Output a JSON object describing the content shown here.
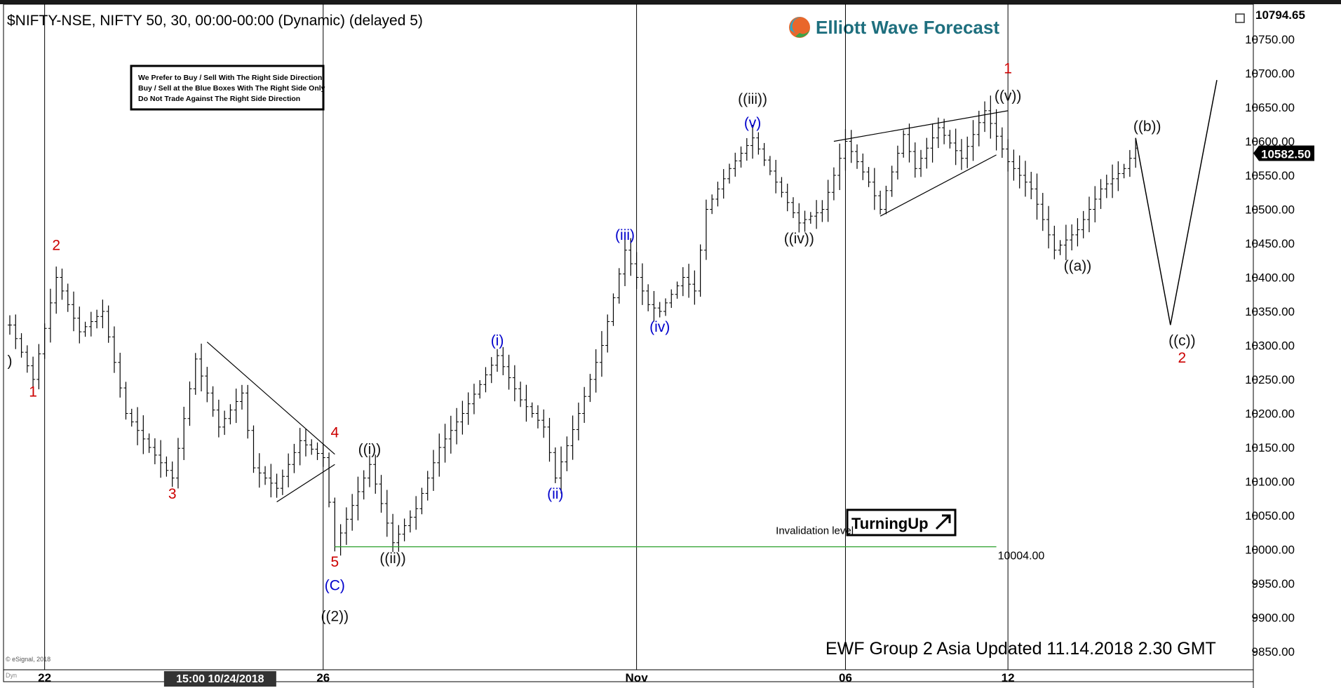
{
  "header": {
    "symbol_line": "$NIFTY-NSE, NIFTY 50, 30, 00:00-00:00 (Dynamic) (delayed 5)",
    "brand": "Elliott Wave Forecast",
    "footer_note": "EWF Group 2 Asia Updated 11.14.2018 2.30 GMT",
    "copyright": "© eSignal, 2018",
    "dyn_tag": "Dyn"
  },
  "notice_box": {
    "lines": [
      "We Prefer to Buy / Sell With The Right Side Direction",
      "Buy / Sell at the Blue Boxes With The Right Side Only",
      "Do Not Trade Against The Right Side Direction"
    ]
  },
  "badge": {
    "label": "TurningUp"
  },
  "colors": {
    "price_bar": "#000000",
    "red_label": "#cc0000",
    "blue_label": "#0000cc",
    "black_label": "#111111",
    "invalidation_line": "#2ca02c",
    "current_price_bg": "#000000"
  },
  "chart_data": {
    "type": "line",
    "title": "",
    "xlabel": "",
    "ylabel": "",
    "ylim": [
      9820,
      10800
    ],
    "yticks": [
      "10750.00",
      "10700.00",
      "10650.00",
      "10600.00",
      "10550.00",
      "10500.00",
      "10450.00",
      "10400.00",
      "10350.00",
      "10300.00",
      "10250.00",
      "10200.00",
      "10150.00",
      "10100.00",
      "10050.00",
      "10000.00",
      "9950.00",
      "9900.00",
      "9850.00"
    ],
    "ytick_values": [
      10750,
      10700,
      10650,
      10600,
      10550,
      10500,
      10450,
      10400,
      10350,
      10300,
      10250,
      10200,
      10150,
      10100,
      10050,
      10000,
      9950,
      9900,
      9850
    ],
    "top_price_label": "10794.65",
    "top_price_value": 10794.65,
    "current_price_label": "10582.50",
    "current_price_value": 10582.5,
    "xticks": [
      "22",
      "26",
      "Nov",
      "06",
      "12"
    ],
    "xtick_index": [
      3,
      27,
      54,
      72,
      86
    ],
    "crosshair_date_label": "15:00 10/24/2018",
    "crosshair_index": 18,
    "bar_count": 105,
    "price_path": [
      {
        "i": 0,
        "v": 10330
      },
      {
        "i": 2,
        "v": 10250
      },
      {
        "i": 4,
        "v": 10400
      },
      {
        "i": 6,
        "v": 10320
      },
      {
        "i": 8,
        "v": 10350
      },
      {
        "i": 10,
        "v": 10200
      },
      {
        "i": 12,
        "v": 10150
      },
      {
        "i": 14,
        "v": 10105
      },
      {
        "i": 16,
        "v": 10280
      },
      {
        "i": 18,
        "v": 10180
      },
      {
        "i": 20,
        "v": 10230
      },
      {
        "i": 21,
        "v": 10120
      },
      {
        "i": 23,
        "v": 10090
      },
      {
        "i": 25,
        "v": 10160
      },
      {
        "i": 27,
        "v": 10135
      },
      {
        "i": 28,
        "v": 10004
      },
      {
        "i": 30,
        "v": 10085
      },
      {
        "i": 31,
        "v": 10125
      },
      {
        "i": 33,
        "v": 10010
      },
      {
        "i": 35,
        "v": 10060
      },
      {
        "i": 37,
        "v": 10150
      },
      {
        "i": 39,
        "v": 10200
      },
      {
        "i": 42,
        "v": 10285
      },
      {
        "i": 44,
        "v": 10220
      },
      {
        "i": 46,
        "v": 10180
      },
      {
        "i": 47,
        "v": 10105
      },
      {
        "i": 49,
        "v": 10200
      },
      {
        "i": 51,
        "v": 10300
      },
      {
        "i": 53,
        "v": 10440
      },
      {
        "i": 55,
        "v": 10360
      },
      {
        "i": 56,
        "v": 10350
      },
      {
        "i": 58,
        "v": 10400
      },
      {
        "i": 59,
        "v": 10380
      },
      {
        "i": 60,
        "v": 10500
      },
      {
        "i": 62,
        "v": 10560
      },
      {
        "i": 64,
        "v": 10605
      },
      {
        "i": 66,
        "v": 10540
      },
      {
        "i": 68,
        "v": 10480
      },
      {
        "i": 70,
        "v": 10500
      },
      {
        "i": 72,
        "v": 10600
      },
      {
        "i": 74,
        "v": 10540
      },
      {
        "i": 75,
        "v": 10500
      },
      {
        "i": 77,
        "v": 10610
      },
      {
        "i": 78,
        "v": 10560
      },
      {
        "i": 80,
        "v": 10620
      },
      {
        "i": 82,
        "v": 10575
      },
      {
        "i": 84,
        "v": 10645
      },
      {
        "i": 86,
        "v": 10570
      },
      {
        "i": 88,
        "v": 10530
      },
      {
        "i": 90,
        "v": 10440
      },
      {
        "i": 92,
        "v": 10470
      },
      {
        "i": 94,
        "v": 10530
      },
      {
        "i": 96,
        "v": 10560
      },
      {
        "i": 97,
        "v": 10590
      }
    ],
    "projection_path": [
      {
        "i": 97,
        "v": 10605
      },
      {
        "i": 100,
        "v": 10330
      },
      {
        "i": 104,
        "v": 10690
      }
    ],
    "invalidation": {
      "label": "Invalidation level",
      "value_label": "10004.00",
      "value": 10004,
      "i_start": 28,
      "i_end": 85
    },
    "trend_lines": [
      {
        "i1": 17,
        "v1": 10305,
        "i2": 28,
        "v2": 10140
      },
      {
        "i1": 23,
        "v1": 10070,
        "i2": 28,
        "v2": 10125
      },
      {
        "i1": 71,
        "v1": 10600,
        "i2": 86,
        "v2": 10645
      },
      {
        "i1": 75,
        "v1": 10490,
        "i2": 85,
        "v2": 10580
      }
    ],
    "wave_labels": [
      {
        "text": ")",
        "i": 0,
        "v": 10270,
        "color": "black"
      },
      {
        "text": "1",
        "i": 2,
        "v": 10225,
        "color": "red"
      },
      {
        "text": "2",
        "i": 4,
        "v": 10440,
        "color": "red"
      },
      {
        "text": "3",
        "i": 14,
        "v": 10075,
        "color": "red"
      },
      {
        "text": "4",
        "i": 28,
        "v": 10165,
        "color": "red"
      },
      {
        "text": "5",
        "i": 28,
        "v": 9975,
        "color": "red"
      },
      {
        "text": "(C)",
        "i": 28,
        "v": 9940,
        "color": "blue"
      },
      {
        "text": "((2))",
        "i": 28,
        "v": 9895,
        "color": "black"
      },
      {
        "text": "((i))",
        "i": 31,
        "v": 10140,
        "color": "black"
      },
      {
        "text": "((ii))",
        "i": 33,
        "v": 9980,
        "color": "black"
      },
      {
        "text": "(i)",
        "i": 42,
        "v": 10300,
        "color": "blue"
      },
      {
        "text": "(ii)",
        "i": 47,
        "v": 10075,
        "color": "blue"
      },
      {
        "text": "(iii)",
        "i": 53,
        "v": 10455,
        "color": "blue"
      },
      {
        "text": "(iv)",
        "i": 56,
        "v": 10320,
        "color": "blue"
      },
      {
        "text": "(v)",
        "i": 64,
        "v": 10620,
        "color": "blue"
      },
      {
        "text": "((iii))",
        "i": 64,
        "v": 10655,
        "color": "black"
      },
      {
        "text": "((iv))",
        "i": 68,
        "v": 10450,
        "color": "black"
      },
      {
        "text": "1",
        "i": 86,
        "v": 10700,
        "color": "red"
      },
      {
        "text": "((v))",
        "i": 86,
        "v": 10660,
        "color": "black"
      },
      {
        "text": "((a))",
        "i": 92,
        "v": 10410,
        "color": "black"
      },
      {
        "text": "((b))",
        "i": 98,
        "v": 10615,
        "color": "black"
      },
      {
        "text": "((c))",
        "i": 101,
        "v": 10300,
        "color": "black"
      },
      {
        "text": "2",
        "i": 101,
        "v": 10275,
        "color": "red"
      }
    ]
  }
}
